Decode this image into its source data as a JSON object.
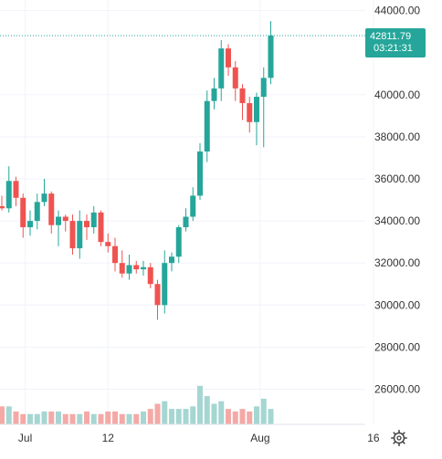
{
  "colors": {
    "up": "#26a69a",
    "down": "#ef5350",
    "up_volume": "#a5d6d2",
    "down_volume": "#f4a9a6",
    "grid": "#f0f3fa",
    "price_line": "#26a69a",
    "tag_bg": "#26a69a"
  },
  "price_tag": {
    "price": "42811.79",
    "countdown": "03:21:31"
  },
  "icons": {
    "settings": "gear-icon"
  },
  "chart_data": {
    "type": "candlestick",
    "title": "",
    "xlabel": "",
    "ylabel": "",
    "ylim": [
      24400,
      44400
    ],
    "grid": true,
    "y_ticks": [
      "26000.00",
      "28000.00",
      "30000.00",
      "32000.00",
      "34000.00",
      "36000.00",
      "38000.00",
      "40000.00",
      "44000.00"
    ],
    "y_tick_values": [
      26000,
      28000,
      30000,
      32000,
      34000,
      36000,
      38000,
      40000,
      44000
    ],
    "x_ticks": [
      "Jul",
      "12",
      "Aug",
      "16"
    ],
    "x_tick_index": [
      3.3,
      15,
      36.5,
      52.5
    ],
    "last_price": 42811.79,
    "candles": [
      {
        "o": 34700,
        "h": 35200,
        "l": 34500,
        "c": 34600
      },
      {
        "o": 34600,
        "h": 36600,
        "l": 34400,
        "c": 35900
      },
      {
        "o": 35900,
        "h": 36100,
        "l": 34700,
        "c": 35100
      },
      {
        "o": 35100,
        "h": 35300,
        "l": 33200,
        "c": 33700
      },
      {
        "o": 33700,
        "h": 34500,
        "l": 33300,
        "c": 34000
      },
      {
        "o": 34000,
        "h": 35300,
        "l": 33600,
        "c": 34900
      },
      {
        "o": 34900,
        "h": 36000,
        "l": 34700,
        "c": 35300
      },
      {
        "o": 35300,
        "h": 35400,
        "l": 33400,
        "c": 33800
      },
      {
        "o": 33800,
        "h": 34500,
        "l": 32800,
        "c": 34200
      },
      {
        "o": 34200,
        "h": 34300,
        "l": 33500,
        "c": 34000
      },
      {
        "o": 34000,
        "h": 34300,
        "l": 32400,
        "c": 32700
      },
      {
        "o": 32700,
        "h": 34500,
        "l": 32200,
        "c": 34000
      },
      {
        "o": 34000,
        "h": 34300,
        "l": 33100,
        "c": 33700
      },
      {
        "o": 33700,
        "h": 34700,
        "l": 33400,
        "c": 34400
      },
      {
        "o": 34400,
        "h": 34500,
        "l": 32800,
        "c": 33000
      },
      {
        "o": 33000,
        "h": 33400,
        "l": 32500,
        "c": 32800
      },
      {
        "o": 32800,
        "h": 33200,
        "l": 31600,
        "c": 32000
      },
      {
        "o": 32000,
        "h": 32600,
        "l": 31300,
        "c": 31500
      },
      {
        "o": 31500,
        "h": 32400,
        "l": 31200,
        "c": 31900
      },
      {
        "o": 31900,
        "h": 32100,
        "l": 31500,
        "c": 31700
      },
      {
        "o": 31700,
        "h": 32100,
        "l": 31400,
        "c": 31800
      },
      {
        "o": 31800,
        "h": 32000,
        "l": 30800,
        "c": 31000
      },
      {
        "o": 31000,
        "h": 31200,
        "l": 29300,
        "c": 30000
      },
      {
        "o": 30000,
        "h": 32600,
        "l": 29600,
        "c": 32000
      },
      {
        "o": 32000,
        "h": 32500,
        "l": 31600,
        "c": 32300
      },
      {
        "o": 32300,
        "h": 33800,
        "l": 32000,
        "c": 33700
      },
      {
        "o": 33700,
        "h": 34600,
        "l": 33500,
        "c": 34200
      },
      {
        "o": 34200,
        "h": 35600,
        "l": 34000,
        "c": 35200
      },
      {
        "o": 35200,
        "h": 37700,
        "l": 35000,
        "c": 37300
      },
      {
        "o": 37300,
        "h": 40200,
        "l": 36800,
        "c": 39700
      },
      {
        "o": 39700,
        "h": 40800,
        "l": 39300,
        "c": 40300
      },
      {
        "o": 40300,
        "h": 42600,
        "l": 39700,
        "c": 42200
      },
      {
        "o": 42200,
        "h": 42400,
        "l": 40900,
        "c": 41300
      },
      {
        "o": 41300,
        "h": 41600,
        "l": 39700,
        "c": 40300
      },
      {
        "o": 40300,
        "h": 40500,
        "l": 38800,
        "c": 39600
      },
      {
        "o": 39600,
        "h": 39900,
        "l": 38200,
        "c": 38700
      },
      {
        "o": 38700,
        "h": 40100,
        "l": 37600,
        "c": 39900
      },
      {
        "o": 39900,
        "h": 41300,
        "l": 37500,
        "c": 40800
      },
      {
        "o": 40800,
        "h": 43500,
        "l": 40500,
        "c": 42811.79
      }
    ],
    "volume": [
      7,
      7,
      5,
      4,
      4,
      4,
      5,
      5,
      5,
      4,
      4,
      4,
      5,
      4,
      4,
      5,
      5,
      4,
      4,
      4,
      5,
      6,
      8,
      9,
      6,
      6,
      6,
      7,
      15,
      11,
      8,
      9,
      6,
      5,
      6,
      5,
      7,
      10,
      6
    ],
    "volume_max": 16
  }
}
